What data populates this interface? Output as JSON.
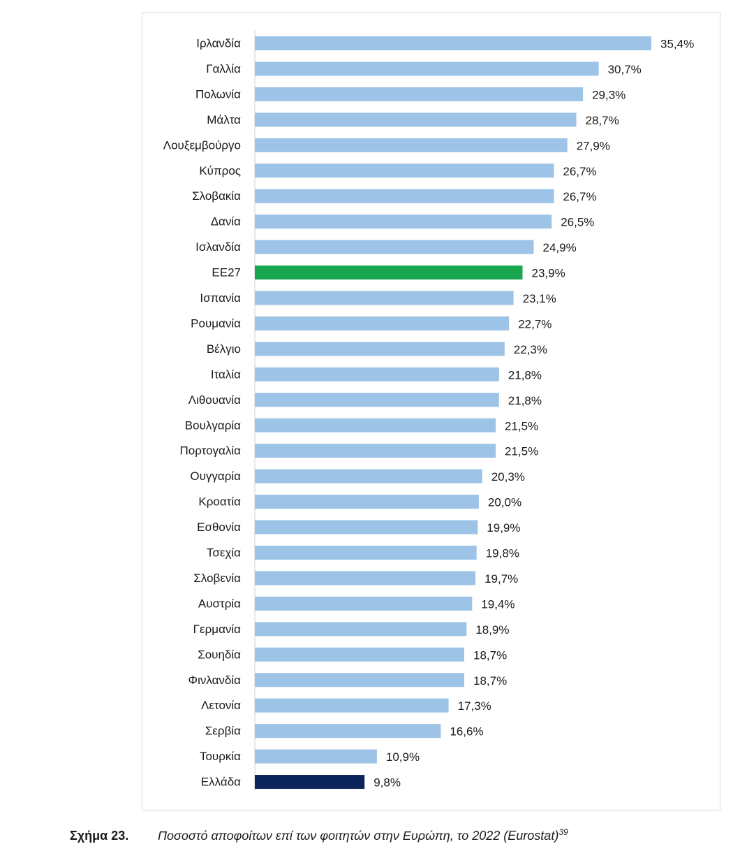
{
  "chart_data": {
    "type": "bar",
    "orientation": "horizontal",
    "categories": [
      "Ιρλανδία",
      "Γαλλία",
      "Πολωνία",
      "Μάλτα",
      "Λουξεμβούργο",
      "Κύπρος",
      "Σλοβακία",
      "Δανία",
      "Ισλανδία",
      "ΕΕ27",
      "Ισπανία",
      "Ρουμανία",
      "Βέλγιο",
      "Ιταλία",
      "Λιθουανία",
      "Βουλγαρία",
      "Πορτογαλία",
      "Ουγγαρία",
      "Κροατία",
      "Εσθονία",
      "Τσεχία",
      "Σλοβενία",
      "Αυστρία",
      "Γερμανία",
      "Σουηδία",
      "Φινλανδία",
      "Λετονία",
      "Σερβία",
      "Τουρκία",
      "Ελλάδα"
    ],
    "values": [
      35.4,
      30.7,
      29.3,
      28.7,
      27.9,
      26.7,
      26.7,
      26.5,
      24.9,
      23.9,
      23.1,
      22.7,
      22.3,
      21.8,
      21.8,
      21.5,
      21.5,
      20.3,
      20.0,
      19.9,
      19.8,
      19.7,
      19.4,
      18.9,
      18.7,
      18.7,
      17.3,
      16.6,
      10.9,
      9.8
    ],
    "value_labels": [
      "35,4%",
      "30,7%",
      "29,3%",
      "28,7%",
      "27,9%",
      "26,7%",
      "26,7%",
      "26,5%",
      "24,9%",
      "23,9%",
      "23,1%",
      "22,7%",
      "22,3%",
      "21,8%",
      "21,8%",
      "21,5%",
      "21,5%",
      "20,3%",
      "20,0%",
      "19,9%",
      "19,8%",
      "19,7%",
      "19,4%",
      "18,9%",
      "18,7%",
      "18,7%",
      "17,3%",
      "16,6%",
      "10,9%",
      "9,8%"
    ],
    "xlim": [
      0,
      35.4
    ],
    "grid": false,
    "legend": "none",
    "colors": {
      "default": "#9dc3e6",
      "highlight_ee27": "#1aa64f",
      "highlight_greece": "#0b2459"
    },
    "highlight": {
      "ΕΕ27": "highlight_ee27",
      "Ελλάδα": "highlight_greece"
    }
  },
  "caption": {
    "number": "Σχήμα 23.",
    "text": "Ποσοστό αποφοίτων επί των φοιτητών στην Ευρώπη, το 2022 (Eurostat)",
    "footnote": "39"
  }
}
